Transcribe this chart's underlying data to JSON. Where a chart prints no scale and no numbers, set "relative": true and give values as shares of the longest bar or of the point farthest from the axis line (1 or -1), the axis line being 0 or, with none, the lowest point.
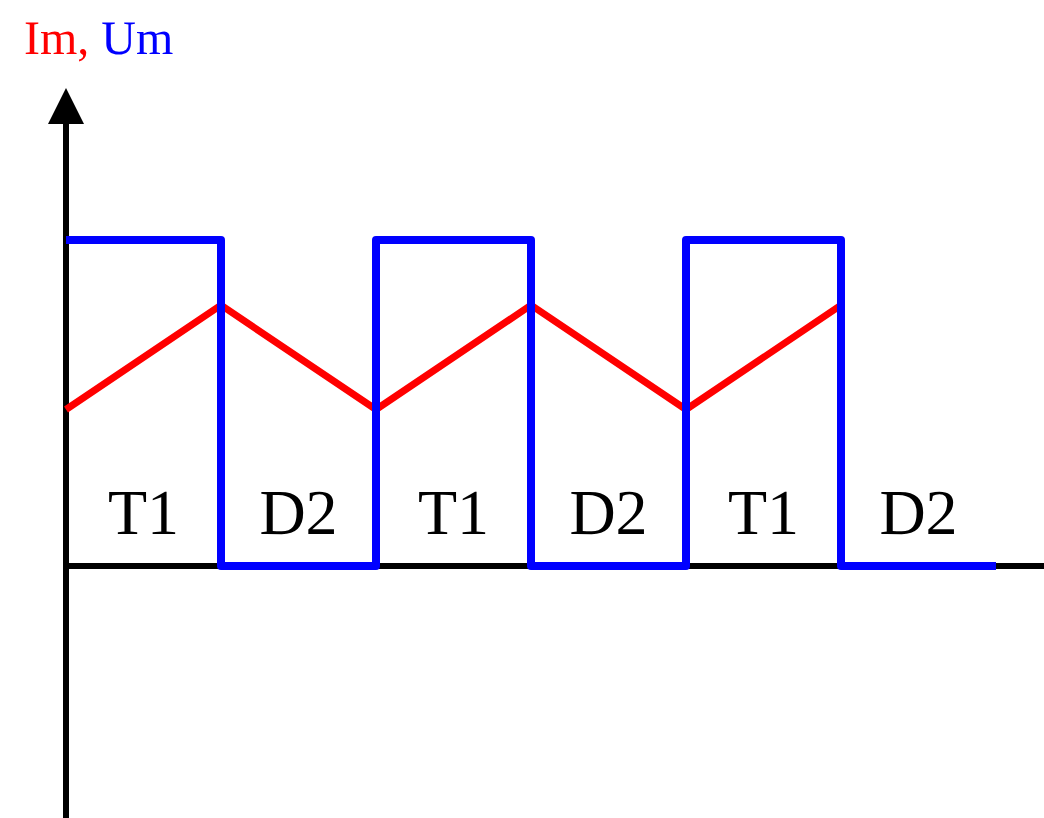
{
  "chart_data": {
    "type": "line",
    "relative": true,
    "ylabel": "Im, Um",
    "categories": [
      null,
      null,
      null,
      null,
      null,
      null,
      null
    ],
    "series": [
      {
        "type": "line",
        "color": "#ff0000",
        "values": [
          0.48,
          0.8,
          0.48,
          0.8,
          0.48,
          0.8,
          null
        ]
      },
      {
        "type": "step",
        "color": "#0000ff",
        "values": [
          1,
          0,
          1,
          0,
          1,
          0,
          0
        ]
      }
    ],
    "annotations": [
      "T1",
      "D2",
      "T1",
      "D2",
      "T1",
      "D2"
    ]
  }
}
